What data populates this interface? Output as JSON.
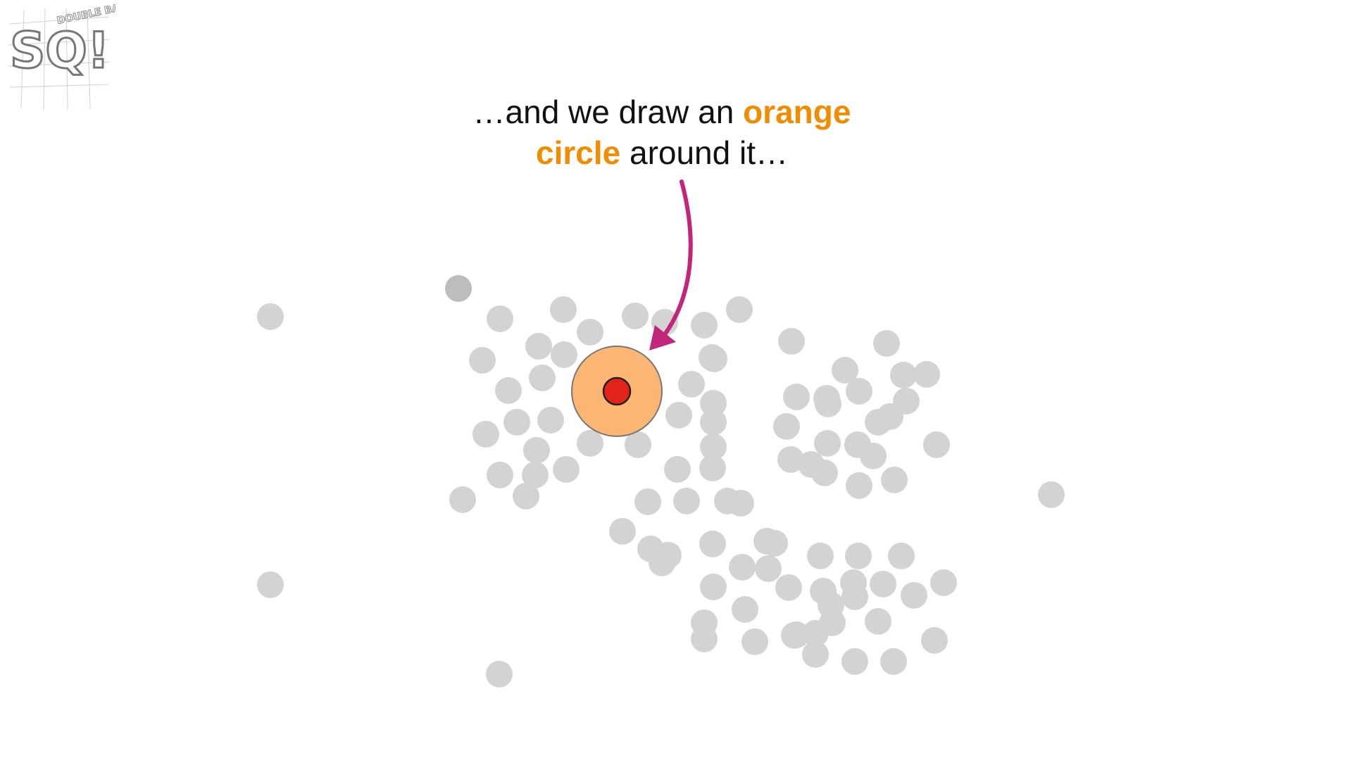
{
  "caption": {
    "part1": "…and we draw an ",
    "highlight1": "orange",
    "highlight2": "circle",
    "part2": " around it…"
  },
  "logo": {
    "letters": "SQ!",
    "top_words": "DOUBLE BAM!!"
  },
  "colors": {
    "point_gray": "#d3d3d3",
    "point_dark_gray": "#bdbdbd",
    "orange_fill": "#f9b26b",
    "orange_text": "#f08c00",
    "core_point": "#e2231a",
    "arrow": "#c2267a"
  },
  "icons": {
    "arrow": "curved-arrow-icon",
    "logo": "statquest-logo-icon"
  }
}
